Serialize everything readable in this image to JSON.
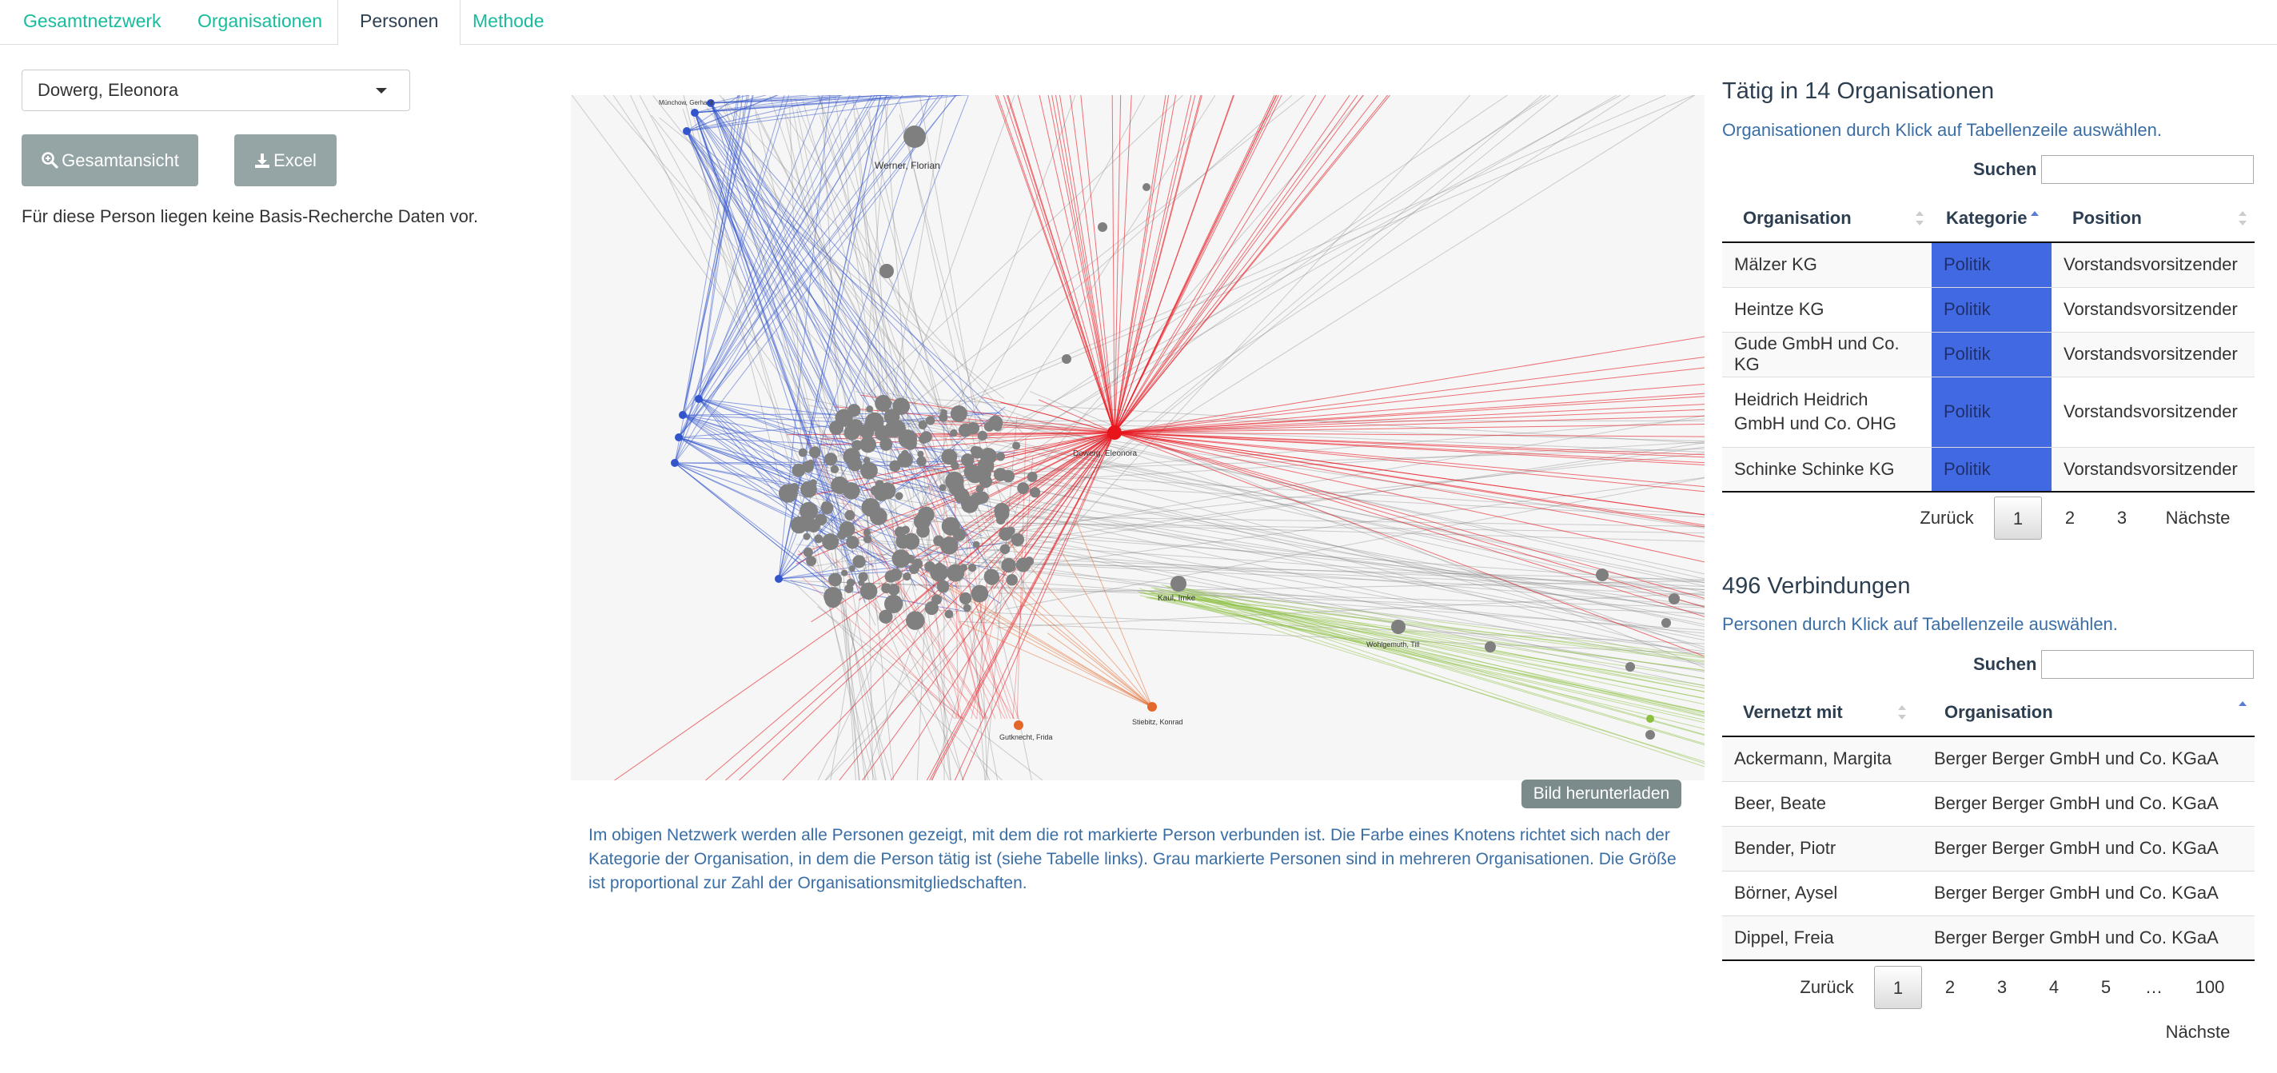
{
  "nav": {
    "tabs": [
      {
        "label": "Gesamtnetzwerk",
        "active": false
      },
      {
        "label": "Organisationen",
        "active": false
      },
      {
        "label": "Personen",
        "active": true
      },
      {
        "label": "Methode",
        "active": false
      }
    ]
  },
  "person_select": {
    "value": "Dowerg, Eleonora"
  },
  "buttons": {
    "overview": "Gesamtansicht",
    "excel": "Excel"
  },
  "no_data_text": "Für diese Person liegen keine Basis-Recherche Daten vor.",
  "graph": {
    "download_label": "Bild herunterladen",
    "caption": "Im obigen Netzwerk werden alle Personen gezeigt, mit dem die rot markierte Person verbunden ist. Die Farbe eines Knotens richtet sich nach der Kategorie der Organisation, in dem die Person tätig ist (siehe Tabelle links). Grau markierte Personen sind in mehreren Organisationen. Die Größe ist proportional zur Zahl der Organisationsmitgliedschaften.",
    "node_labels": {
      "center": "Dowerg, Eleonora",
      "n1": "Kaul, Imke",
      "n2": "Gutknecht, Frida",
      "n3": "Stiebitz, Konrad",
      "n4": "Werner, Florian",
      "n5": "Münchow, Gerhard",
      "n6": "Wohlgemuth, Till"
    },
    "colors": {
      "focus": "#e8141c",
      "blue": "#3355cc",
      "gray": "#777777",
      "orange": "#e3672a",
      "green": "#8cbf3f"
    }
  },
  "orgs": {
    "title": "Tätig in 14 Organisationen",
    "hint": "Organisationen durch Klick auf Tabellenzeile auswählen.",
    "search_label": "Suchen",
    "columns": [
      "Organisation",
      "Kategorie",
      "Position"
    ],
    "rows": [
      {
        "org": "Mälzer KG",
        "cat": "Politik",
        "pos": "Vorstandsvorsitzender"
      },
      {
        "org": "Heintze KG",
        "cat": "Politik",
        "pos": "Vorstandsvorsitzender"
      },
      {
        "org": "Gude GmbH und Co. KG",
        "cat": "Politik",
        "pos": "Vorstandsvorsitzender"
      },
      {
        "org": "Heidrich Heidrich GmbH und Co. OHG",
        "cat": "Politik",
        "pos": "Vorstandsvorsitzender"
      },
      {
        "org": "Schinke Schinke KG",
        "cat": "Politik",
        "pos": "Vorstandsvorsitzender"
      }
    ],
    "pager": {
      "prev": "Zurück",
      "pages": [
        "1",
        "2",
        "3"
      ],
      "next": "Nächste"
    }
  },
  "connections": {
    "title": "496 Verbindungen",
    "hint": "Personen durch Klick auf Tabellenzeile auswählen.",
    "search_label": "Suchen",
    "columns": [
      "Vernetzt mit",
      "Organisation"
    ],
    "rows": [
      {
        "name": "Ackermann, Margita",
        "org": "Berger Berger GmbH und Co. KGaA"
      },
      {
        "name": "Beer, Beate",
        "org": "Berger Berger GmbH und Co. KGaA"
      },
      {
        "name": "Bender, Piotr",
        "org": "Berger Berger GmbH und Co. KGaA"
      },
      {
        "name": "Börner, Aysel",
        "org": "Berger Berger GmbH und Co. KGaA"
      },
      {
        "name": "Dippel, Freia",
        "org": "Berger Berger GmbH und Co. KGaA"
      }
    ],
    "pager": {
      "prev": "Zurück",
      "pages": [
        "1",
        "2",
        "3",
        "4",
        "5",
        "…",
        "100"
      ],
      "next": "Nächste"
    }
  }
}
